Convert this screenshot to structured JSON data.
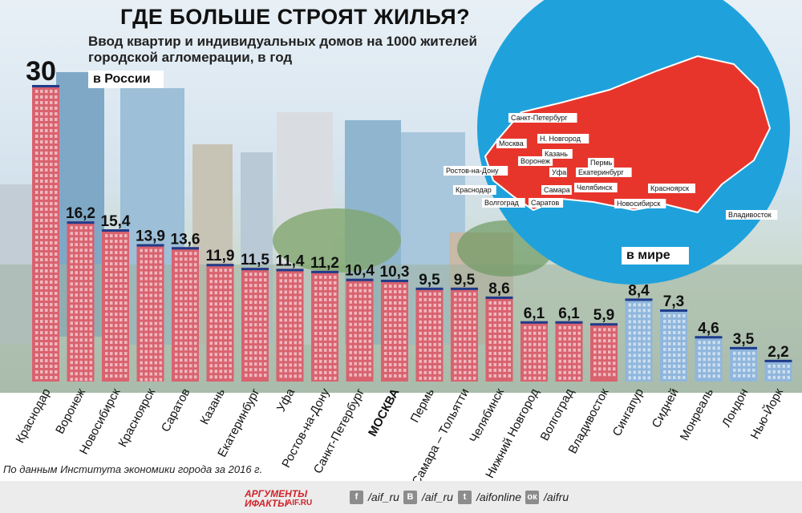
{
  "header": {
    "title": "ГДЕ БОЛЬШЕ СТРОЯТ ЖИЛЬЯ?",
    "subtitle": "Ввод квартир и индивидуальных домов на 1000 жителей городской агломерации, в год"
  },
  "sections": {
    "russia_label": "в России",
    "world_label": "в мире"
  },
  "map": {
    "cities": [
      "Санкт-Петербург",
      "Москва",
      "Н. Новгород",
      "Казань",
      "Воронеж",
      "Пермь",
      "Ростов-на-Дону",
      "Уфа",
      "Екатеринбург",
      "Краснодар",
      "Самара",
      "Челябинск",
      "Красноярск",
      "Волгоград",
      "Саратов",
      "Новосибирск",
      "Владивосток"
    ]
  },
  "chart_data": {
    "type": "bar",
    "categories": [
      "Краснодар",
      "Воронеж",
      "Новосибирск",
      "Красноярск",
      "Саратов",
      "Казань",
      "Екатеринбург",
      "Уфа",
      "Ростов-на-Дону",
      "Санкт-Петербург",
      "МОСКВА",
      "Пермь",
      "Самара – Тольятти",
      "Челябинск",
      "Нижний Новгород",
      "Волгоград",
      "Владивосток",
      "Сингапур",
      "Сидней",
      "Монреаль",
      "Лондон",
      "Нью-Йорк"
    ],
    "values": [
      30,
      16.2,
      15.4,
      13.9,
      13.6,
      11.9,
      11.5,
      11.4,
      11.2,
      10.4,
      10.3,
      9.5,
      9.5,
      8.6,
      6.1,
      6.1,
      5.9,
      8.4,
      7.3,
      4.6,
      3.5,
      2.2
    ],
    "value_labels": [
      "30",
      "16,2",
      "15,4",
      "13,9",
      "13,6",
      "11,9",
      "11,5",
      "11,4",
      "11,2",
      "10,4",
      "10,3",
      "9,5",
      "9,5",
      "8,6",
      "6,1",
      "6,1",
      "5,9",
      "8,4",
      "7,3",
      "4,6",
      "3,5",
      "2,2"
    ],
    "groups": [
      "в России",
      "в России",
      "в России",
      "в России",
      "в России",
      "в России",
      "в России",
      "в России",
      "в России",
      "в России",
      "в России",
      "в России",
      "в России",
      "в России",
      "в России",
      "в России",
      "в России",
      "в мире",
      "в мире",
      "в мире",
      "в мире",
      "в мире"
    ],
    "colors": {
      "russia_fill": "#d9626f",
      "russia_cap": "#1f3c8a",
      "world_fill": "#8fb6dc",
      "world_cap": "#1f3c8a"
    },
    "ylim": [
      0,
      30
    ],
    "grid": false,
    "legend": "none"
  },
  "footer": {
    "source": "По данным Института экономики города за 2016 г.",
    "logo_line1": "АРГУМЕНТЫ",
    "logo_line2": "ИФАКТЫ",
    "logo_domain": "AIF.RU",
    "social": [
      {
        "icon": "facebook-icon",
        "glyph": "f",
        "handle": "/aif_ru"
      },
      {
        "icon": "vk-icon",
        "glyph": "B",
        "handle": "/aif_ru"
      },
      {
        "icon": "twitter-icon",
        "glyph": "t",
        "handle": "/aifonline"
      },
      {
        "icon": "odnoklassniki-icon",
        "glyph": "ок",
        "handle": "/aifru"
      }
    ]
  }
}
